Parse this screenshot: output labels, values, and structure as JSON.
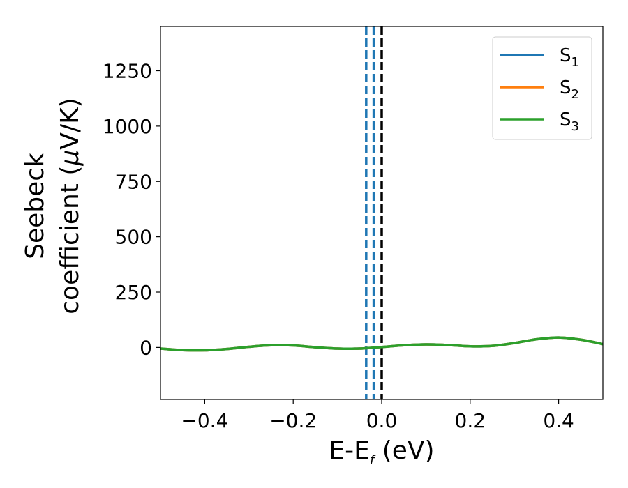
{
  "chart_data": {
    "type": "line",
    "title": "",
    "xlabel": {
      "main": "E-E",
      "sub": "f",
      "unit": " (eV)"
    },
    "ylabel": {
      "line1": "Seebeck",
      "line2": "coefficient  (",
      "mu": "μ",
      "unit": "V/K)"
    },
    "xlim": [
      -0.5,
      0.5
    ],
    "ylim": [
      -235,
      1450
    ],
    "xticks": [
      -0.4,
      -0.2,
      0.0,
      0.2,
      0.4
    ],
    "xtick_labels": [
      "−0.4",
      "−0.2",
      "0.0",
      "0.2",
      "0.4"
    ],
    "yticks": [
      0,
      250,
      500,
      750,
      1000,
      1250
    ],
    "ytick_labels": [
      "0",
      "250",
      "500",
      "750",
      "1000",
      "1250"
    ],
    "grid": false,
    "legend_position": "top-right",
    "series": [
      {
        "name": "S",
        "sub": "1",
        "color": "#1f77b4",
        "x": [
          -0.5,
          -0.45,
          -0.4,
          -0.35,
          -0.3,
          -0.25,
          -0.2,
          -0.15,
          -0.1,
          -0.05,
          0.0,
          0.05,
          0.1,
          0.15,
          0.2,
          0.25,
          0.3,
          0.35,
          0.4,
          0.45,
          0.5
        ],
        "y": [
          -5,
          -12,
          -13,
          -7,
          3,
          10,
          9,
          1,
          -5,
          -5,
          2,
          10,
          14,
          11,
          5,
          7,
          20,
          37,
          45,
          35,
          15
        ]
      },
      {
        "name": "S",
        "sub": "2",
        "color": "#ff7f0e",
        "x": [
          -0.5,
          -0.45,
          -0.4,
          -0.35,
          -0.3,
          -0.25,
          -0.2,
          -0.15,
          -0.1,
          -0.05,
          0.0,
          0.05,
          0.1,
          0.15,
          0.2,
          0.25,
          0.3,
          0.35,
          0.4,
          0.45,
          0.5
        ],
        "y": [
          -5,
          -12,
          -13,
          -7,
          3,
          10,
          9,
          1,
          -5,
          -5,
          2,
          10,
          14,
          11,
          5,
          7,
          20,
          37,
          45,
          35,
          15
        ]
      },
      {
        "name": "S",
        "sub": "3",
        "color": "#2ca02c",
        "x": [
          -0.5,
          -0.45,
          -0.4,
          -0.35,
          -0.3,
          -0.25,
          -0.2,
          -0.15,
          -0.1,
          -0.05,
          0.0,
          0.05,
          0.1,
          0.15,
          0.2,
          0.25,
          0.3,
          0.35,
          0.4,
          0.45,
          0.5
        ],
        "y": [
          -5,
          -12,
          -13,
          -7,
          3,
          10,
          9,
          1,
          -5,
          -5,
          2,
          10,
          14,
          11,
          5,
          7,
          20,
          37,
          45,
          35,
          15
        ]
      }
    ],
    "vlines": [
      {
        "x": -0.035,
        "color": "#1f77b4",
        "style": "dashed"
      },
      {
        "x": -0.018,
        "color": "#1f77b4",
        "style": "dashed"
      },
      {
        "x": 0.0,
        "color": "#000000",
        "style": "dashed"
      }
    ]
  }
}
